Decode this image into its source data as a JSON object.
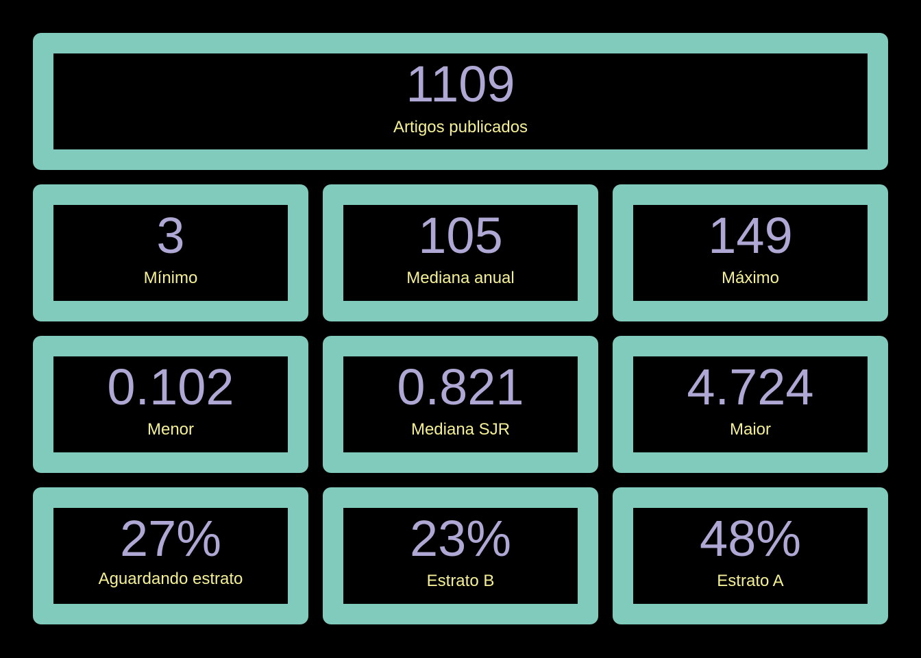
{
  "colors": {
    "background": "#000000",
    "card_border": "#80cbbb",
    "value_text": "#b0a8d4",
    "label_text": "#f5f096"
  },
  "summary": {
    "value": "1109",
    "label": "Artigos publicados"
  },
  "annual": {
    "min": {
      "value": "3",
      "label": "Mínimo"
    },
    "median": {
      "value": "105",
      "label": "Mediana anual"
    },
    "max": {
      "value": "149",
      "label": "Máximo"
    }
  },
  "sjr": {
    "min": {
      "value": "0.102",
      "label": "Menor"
    },
    "median": {
      "value": "0.821",
      "label": "Mediana SJR"
    },
    "max": {
      "value": "4.724",
      "label": "Maior"
    }
  },
  "strata": {
    "pending": {
      "value": "27%",
      "label": "Aguardando estrato"
    },
    "b": {
      "value": "23%",
      "label": "Estrato B"
    },
    "a": {
      "value": "48%",
      "label": "Estrato A"
    }
  }
}
